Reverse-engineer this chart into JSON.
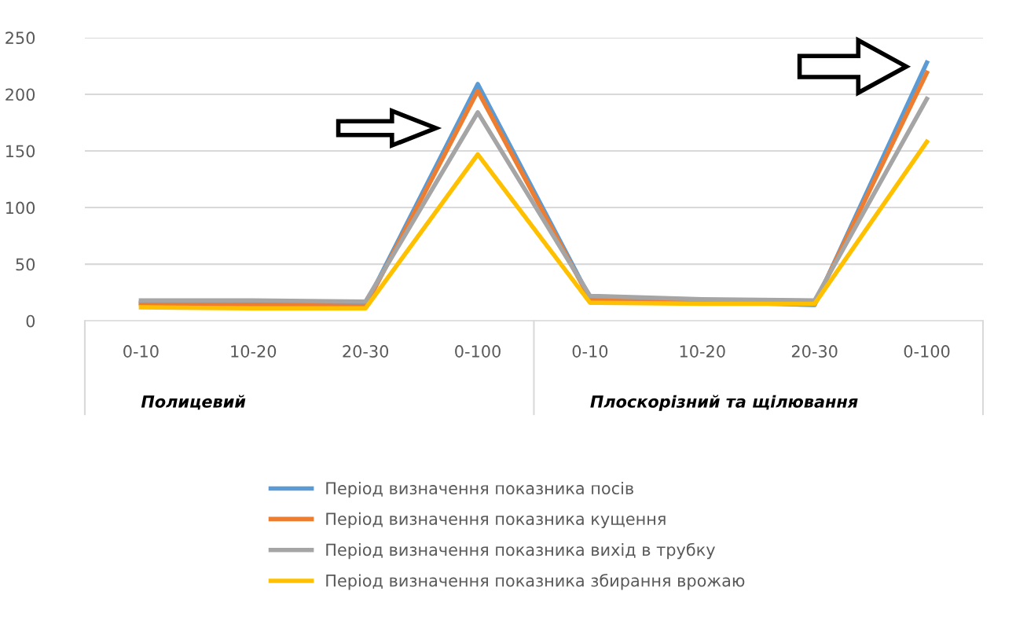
{
  "chart_data": {
    "type": "line",
    "categories": [
      "0-10",
      "10-20",
      "20-30",
      "0-100",
      "0-10",
      "10-20",
      "20-30",
      "0-100"
    ],
    "series": [
      {
        "name": "Період визначення показника посів",
        "color": "#5b9bd5",
        "values": [
          16,
          15,
          14,
          209,
          20,
          17,
          14,
          228
        ]
      },
      {
        "name": "Період визначення показника кущення",
        "color": "#ed7d31",
        "values": [
          15,
          14,
          13,
          203,
          19,
          16,
          15,
          219
        ]
      },
      {
        "name": "Період визначення показника вихід в трубку",
        "color": "#a5a5a5",
        "values": [
          18,
          18,
          17,
          184,
          22,
          19,
          18,
          196
        ]
      },
      {
        "name": "Період визначення показника збирання врожаю",
        "color": "#ffc000",
        "values": [
          12,
          11,
          11,
          147,
          16,
          15,
          15,
          158
        ]
      }
    ],
    "annotations": [
      "Полицевий",
      "Плоскорізний та щілювання"
    ],
    "ylim": [
      0,
      250
    ],
    "yticks": [
      0,
      50,
      100,
      150,
      200,
      250
    ],
    "grid": "y",
    "legend": "bottom",
    "marker": "none",
    "line_style": "solid"
  }
}
